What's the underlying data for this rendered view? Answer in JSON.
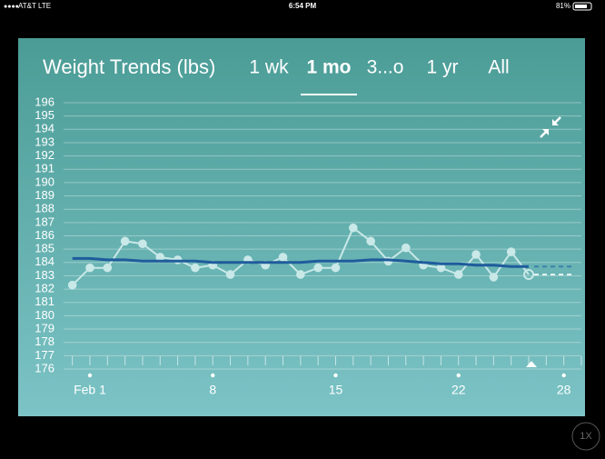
{
  "status_bar": {
    "carrier": "AT&T",
    "network": "LTE",
    "time": "6:54 PM",
    "battery": "81%"
  },
  "header": {
    "title": "Weight Trends (lbs)",
    "tabs": [
      "1 wk",
      "1 mo",
      "3...o",
      "1 yr",
      "All"
    ],
    "selected": "1 mo"
  },
  "zoom": "1X",
  "chart_data": {
    "type": "line",
    "x": [
      0,
      1,
      2,
      3,
      4,
      5,
      6,
      7,
      8,
      9,
      10,
      11,
      12,
      13,
      14,
      15,
      16,
      17,
      18,
      19,
      20,
      21,
      22,
      23,
      24,
      25,
      26
    ],
    "series": [
      {
        "name": "Weight",
        "color": "#c9e8e8",
        "values": [
          182.3,
          183.6,
          183.6,
          185.6,
          185.4,
          184.4,
          184.2,
          183.6,
          183.8,
          183.1,
          184.2,
          183.8,
          184.4,
          183.1,
          183.6,
          183.6,
          186.6,
          185.6,
          184.1,
          185.1,
          183.8,
          183.6,
          183.1,
          184.6,
          182.9,
          184.8,
          183.1
        ]
      },
      {
        "name": "Trend",
        "color": "#1f5c9c",
        "values": [
          184.3,
          184.3,
          184.2,
          184.2,
          184.1,
          184.1,
          184.1,
          184.1,
          184.0,
          184.0,
          184.0,
          184.0,
          184.0,
          184.0,
          184.1,
          184.1,
          184.1,
          184.2,
          184.2,
          184.1,
          184.0,
          183.9,
          183.9,
          183.8,
          183.8,
          183.7,
          183.7
        ]
      }
    ],
    "xlim": [
      -0.5,
      29
    ],
    "xticks": [
      {
        "value": 1,
        "label": "Feb 1"
      },
      8,
      15,
      22,
      28
    ],
    "ylim": [
      176,
      196
    ],
    "yticks": [
      176,
      177,
      178,
      179,
      180,
      181,
      182,
      183,
      184,
      185,
      186,
      187,
      188,
      189,
      190,
      191,
      192,
      193,
      194,
      195,
      196
    ],
    "grid": true
  }
}
